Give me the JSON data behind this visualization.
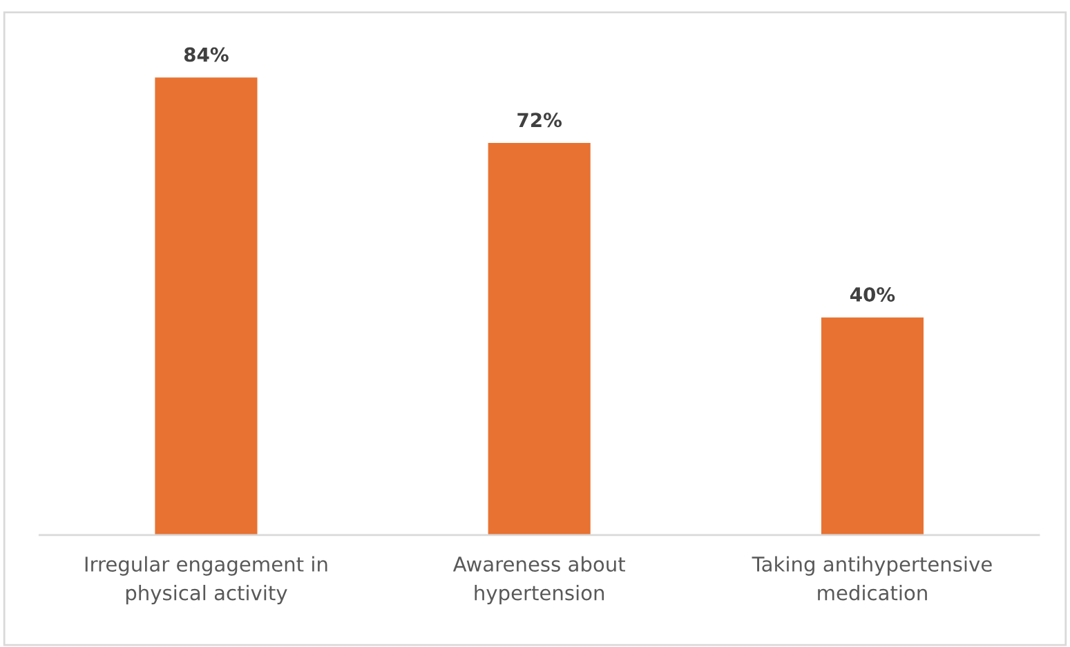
{
  "chart_data": {
    "type": "bar",
    "categories": [
      "Irregular engagement in\nphysical activity",
      "Awareness about\nhypertension",
      "Taking antihypertensive\nmedication"
    ],
    "values": [
      84,
      72,
      40
    ],
    "value_labels": [
      "84%",
      "72%",
      "40%"
    ],
    "color": "#e87232",
    "grid": false
  }
}
